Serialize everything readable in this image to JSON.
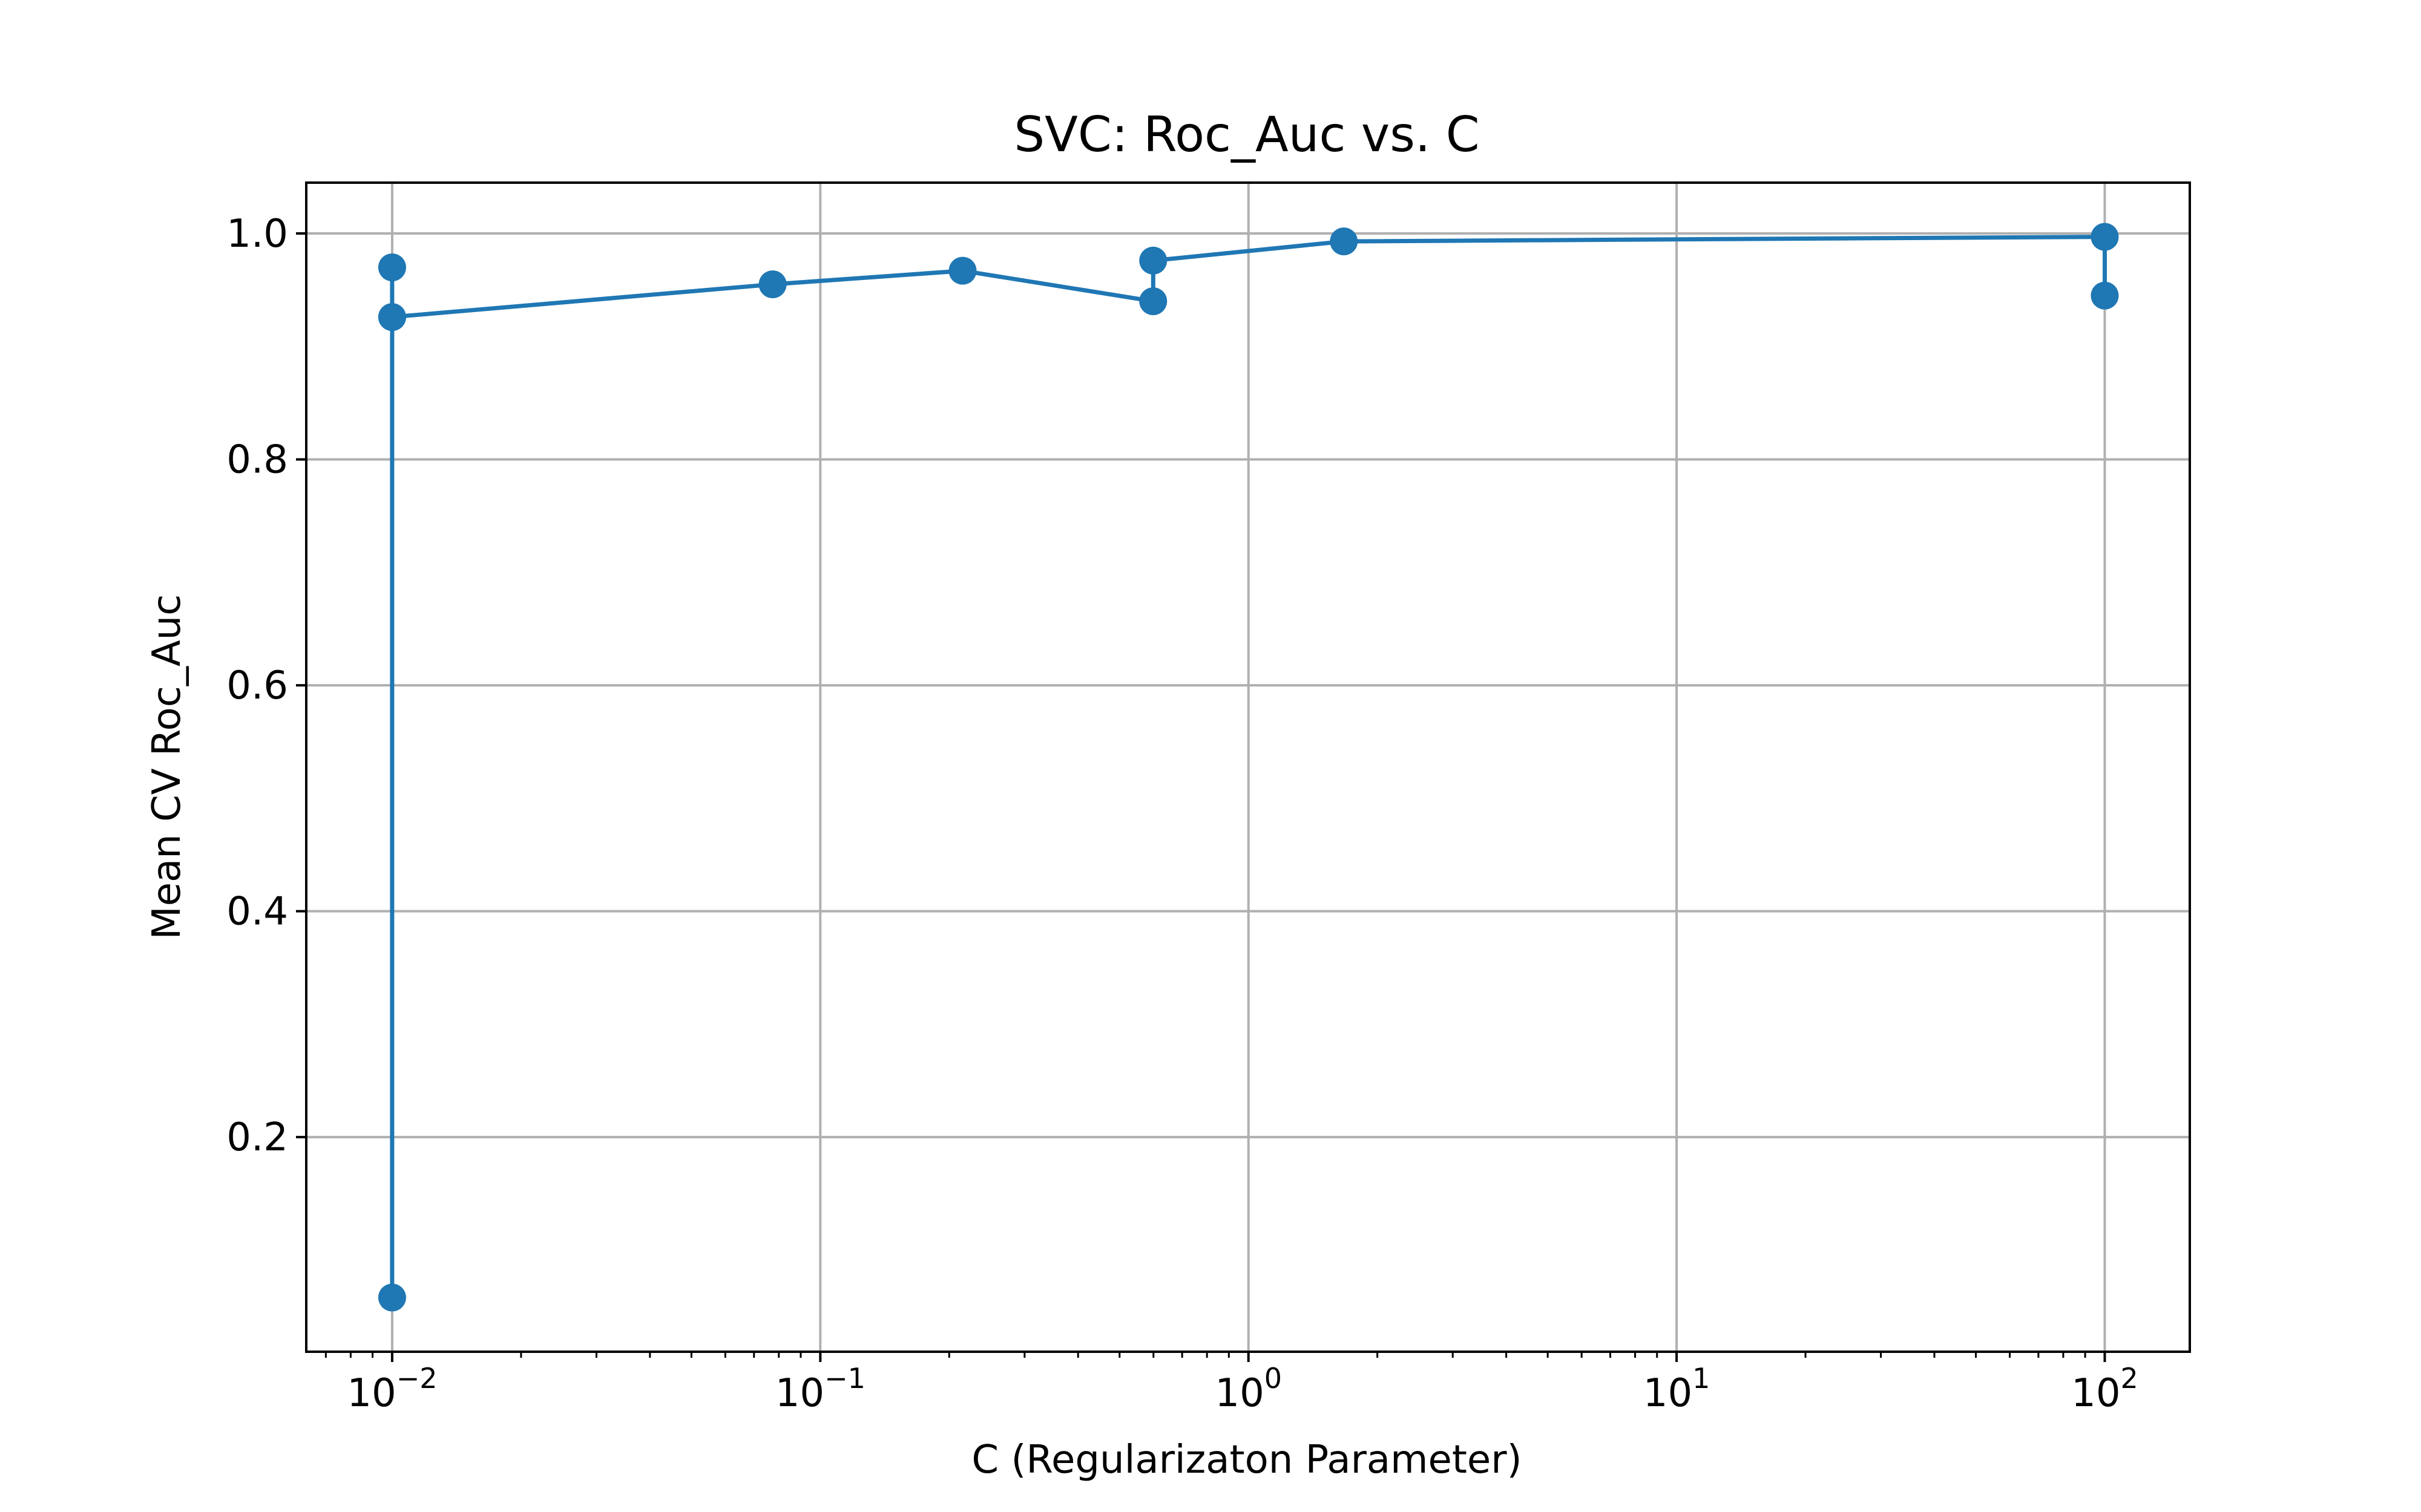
{
  "chart_data": {
    "type": "line",
    "title": "SVC: Roc_Auc vs. C",
    "xlabel": "C (Regularizaton Parameter)",
    "ylabel": "Mean CV Roc_Auc",
    "x_scale": "log",
    "xlim": [
      0.0063,
      158
    ],
    "ylim": [
      0.01,
      1.045
    ],
    "grid": true,
    "x_ticks": [
      {
        "value": 0.01,
        "base": "10",
        "exp": "−2"
      },
      {
        "value": 0.1,
        "base": "10",
        "exp": "−1"
      },
      {
        "value": 1,
        "base": "10",
        "exp": "0"
      },
      {
        "value": 10,
        "base": "10",
        "exp": "1"
      },
      {
        "value": 100,
        "base": "10",
        "exp": "2"
      }
    ],
    "y_ticks": [
      {
        "value": 0.2,
        "label": "0.2"
      },
      {
        "value": 0.4,
        "label": "0.4"
      },
      {
        "value": 0.6,
        "label": "0.6"
      },
      {
        "value": 0.8,
        "label": "0.8"
      },
      {
        "value": 1.0,
        "label": "1.0"
      }
    ],
    "series": [
      {
        "color": "#1f77b4",
        "points": [
          {
            "x": 0.01,
            "y": 0.97
          },
          {
            "x": 0.01,
            "y": 0.926
          },
          {
            "x": 0.01,
            "y": 0.058
          },
          {
            "x": 0.01,
            "y": 0.926
          },
          {
            "x": 0.0774,
            "y": 0.955
          },
          {
            "x": 0.215,
            "y": 0.967
          },
          {
            "x": 0.599,
            "y": 0.94
          },
          {
            "x": 0.599,
            "y": 0.976
          },
          {
            "x": 1.67,
            "y": 0.993
          },
          {
            "x": 100,
            "y": 0.997
          },
          {
            "x": 100,
            "y": 0.945
          }
        ]
      }
    ]
  }
}
